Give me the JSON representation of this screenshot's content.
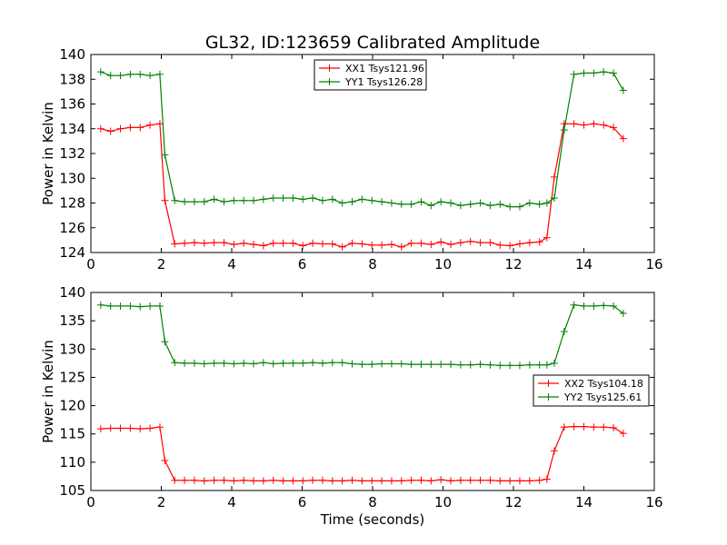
{
  "title": "GL32, ID:123659 Calibrated Amplitude",
  "colors": {
    "red": "#ff0000",
    "green": "#008000",
    "axis": "#000000"
  },
  "chart_data": [
    {
      "type": "line",
      "xlabel": "",
      "ylabel": "Power in Kelvin",
      "xlim": [
        0,
        16
      ],
      "ylim": [
        124,
        140
      ],
      "xticks": [
        0,
        2,
        4,
        6,
        8,
        10,
        12,
        14,
        16
      ],
      "yticks": [
        124,
        126,
        128,
        130,
        132,
        134,
        136,
        138,
        140
      ],
      "legend_position": "top-center",
      "series": [
        {
          "name": "XX1 Tsys121.96",
          "color": "#ff0000",
          "x": [
            0.28,
            0.56,
            0.84,
            1.12,
            1.4,
            1.68,
            1.96,
            2.1,
            2.38,
            2.66,
            2.94,
            3.22,
            3.5,
            3.78,
            4.06,
            4.34,
            4.62,
            4.9,
            5.18,
            5.46,
            5.74,
            6.02,
            6.3,
            6.58,
            6.86,
            7.14,
            7.42,
            7.7,
            7.98,
            8.26,
            8.54,
            8.82,
            9.1,
            9.38,
            9.66,
            9.94,
            10.22,
            10.5,
            10.78,
            11.06,
            11.34,
            11.62,
            11.9,
            12.18,
            12.46,
            12.74,
            12.95,
            13.16,
            13.44,
            13.72,
            14.0,
            14.28,
            14.56,
            14.84,
            15.12
          ],
          "y": [
            134.0,
            133.8,
            134.0,
            134.1,
            134.1,
            134.3,
            134.4,
            128.2,
            124.7,
            124.75,
            124.8,
            124.75,
            124.8,
            124.8,
            124.65,
            124.75,
            124.65,
            124.55,
            124.75,
            124.75,
            124.75,
            124.55,
            124.75,
            124.7,
            124.7,
            124.45,
            124.75,
            124.7,
            124.6,
            124.6,
            124.65,
            124.45,
            124.75,
            124.75,
            124.65,
            124.85,
            124.65,
            124.8,
            124.9,
            124.8,
            124.8,
            124.6,
            124.55,
            124.7,
            124.8,
            124.85,
            125.2,
            130.1,
            134.4,
            134.4,
            134.3,
            134.4,
            134.3,
            134.1,
            133.2
          ]
        },
        {
          "name": "YY1 Tsys126.28",
          "color": "#008000",
          "x": [
            0.28,
            0.56,
            0.84,
            1.12,
            1.4,
            1.68,
            1.96,
            2.1,
            2.38,
            2.66,
            2.94,
            3.22,
            3.5,
            3.78,
            4.06,
            4.34,
            4.62,
            4.9,
            5.18,
            5.46,
            5.74,
            6.02,
            6.3,
            6.58,
            6.86,
            7.14,
            7.42,
            7.7,
            7.98,
            8.26,
            8.54,
            8.82,
            9.1,
            9.38,
            9.66,
            9.94,
            10.22,
            10.5,
            10.78,
            11.06,
            11.34,
            11.62,
            11.9,
            12.18,
            12.46,
            12.74,
            12.95,
            13.16,
            13.44,
            13.72,
            14.0,
            14.28,
            14.56,
            14.84,
            15.12
          ],
          "y": [
            138.6,
            138.3,
            138.3,
            138.4,
            138.4,
            138.3,
            138.4,
            131.9,
            128.2,
            128.1,
            128.1,
            128.1,
            128.3,
            128.1,
            128.2,
            128.2,
            128.2,
            128.3,
            128.4,
            128.4,
            128.4,
            128.3,
            128.4,
            128.2,
            128.3,
            128.0,
            128.1,
            128.3,
            128.2,
            128.1,
            128.0,
            127.9,
            127.9,
            128.1,
            127.8,
            128.1,
            128.0,
            127.8,
            127.9,
            128.0,
            127.8,
            127.9,
            127.7,
            127.7,
            128.0,
            127.9,
            128.0,
            128.4,
            133.9,
            138.4,
            138.5,
            138.5,
            138.6,
            138.5,
            137.1
          ]
        }
      ]
    },
    {
      "type": "line",
      "xlabel": "Time (seconds)",
      "ylabel": "Power in Kelvin",
      "xlim": [
        0,
        16
      ],
      "ylim": [
        105,
        140
      ],
      "xticks": [
        0,
        2,
        4,
        6,
        8,
        10,
        12,
        14,
        16
      ],
      "yticks": [
        105,
        110,
        115,
        120,
        125,
        130,
        135,
        140
      ],
      "legend_position": "center-right",
      "series": [
        {
          "name": "XX2 Tsys104.18",
          "color": "#ff0000",
          "x": [
            0.28,
            0.56,
            0.84,
            1.12,
            1.4,
            1.68,
            1.96,
            2.1,
            2.38,
            2.66,
            2.94,
            3.22,
            3.5,
            3.78,
            4.06,
            4.34,
            4.62,
            4.9,
            5.18,
            5.46,
            5.74,
            6.02,
            6.3,
            6.58,
            6.86,
            7.14,
            7.42,
            7.7,
            7.98,
            8.26,
            8.54,
            8.82,
            9.1,
            9.38,
            9.66,
            9.94,
            10.22,
            10.5,
            10.78,
            11.06,
            11.34,
            11.62,
            11.9,
            12.18,
            12.46,
            12.74,
            12.95,
            13.16,
            13.44,
            13.72,
            14.0,
            14.28,
            14.56,
            14.84,
            15.12
          ],
          "y": [
            115.9,
            116.0,
            116.0,
            116.0,
            115.9,
            116.0,
            116.2,
            110.3,
            106.8,
            106.8,
            106.8,
            106.7,
            106.8,
            106.8,
            106.7,
            106.8,
            106.7,
            106.7,
            106.8,
            106.7,
            106.7,
            106.7,
            106.8,
            106.8,
            106.7,
            106.7,
            106.8,
            106.7,
            106.7,
            106.7,
            106.7,
            106.7,
            106.8,
            106.8,
            106.7,
            106.9,
            106.7,
            106.8,
            106.8,
            106.8,
            106.8,
            106.7,
            106.7,
            106.7,
            106.7,
            106.8,
            107.0,
            112.0,
            116.2,
            116.3,
            116.3,
            116.2,
            116.2,
            116.1,
            115.1
          ]
        },
        {
          "name": "YY2 Tsys125.61",
          "color": "#008000",
          "x": [
            0.28,
            0.56,
            0.84,
            1.12,
            1.4,
            1.68,
            1.96,
            2.1,
            2.38,
            2.66,
            2.94,
            3.22,
            3.5,
            3.78,
            4.06,
            4.34,
            4.62,
            4.9,
            5.18,
            5.46,
            5.74,
            6.02,
            6.3,
            6.58,
            6.86,
            7.14,
            7.42,
            7.7,
            7.98,
            8.26,
            8.54,
            8.82,
            9.1,
            9.38,
            9.66,
            9.94,
            10.22,
            10.5,
            10.78,
            11.06,
            11.34,
            11.62,
            11.9,
            12.18,
            12.46,
            12.74,
            12.95,
            13.16,
            13.44,
            13.72,
            14.0,
            14.28,
            14.56,
            14.84,
            15.12
          ],
          "y": [
            137.8,
            137.6,
            137.6,
            137.6,
            137.5,
            137.6,
            137.6,
            131.3,
            127.6,
            127.5,
            127.5,
            127.4,
            127.5,
            127.5,
            127.4,
            127.5,
            127.4,
            127.6,
            127.4,
            127.5,
            127.5,
            127.5,
            127.6,
            127.5,
            127.6,
            127.6,
            127.4,
            127.3,
            127.3,
            127.4,
            127.4,
            127.4,
            127.3,
            127.3,
            127.3,
            127.3,
            127.3,
            127.2,
            127.2,
            127.3,
            127.2,
            127.1,
            127.1,
            127.1,
            127.2,
            127.2,
            127.2,
            127.5,
            133.1,
            137.8,
            137.6,
            137.6,
            137.7,
            137.6,
            136.3
          ]
        }
      ]
    }
  ]
}
